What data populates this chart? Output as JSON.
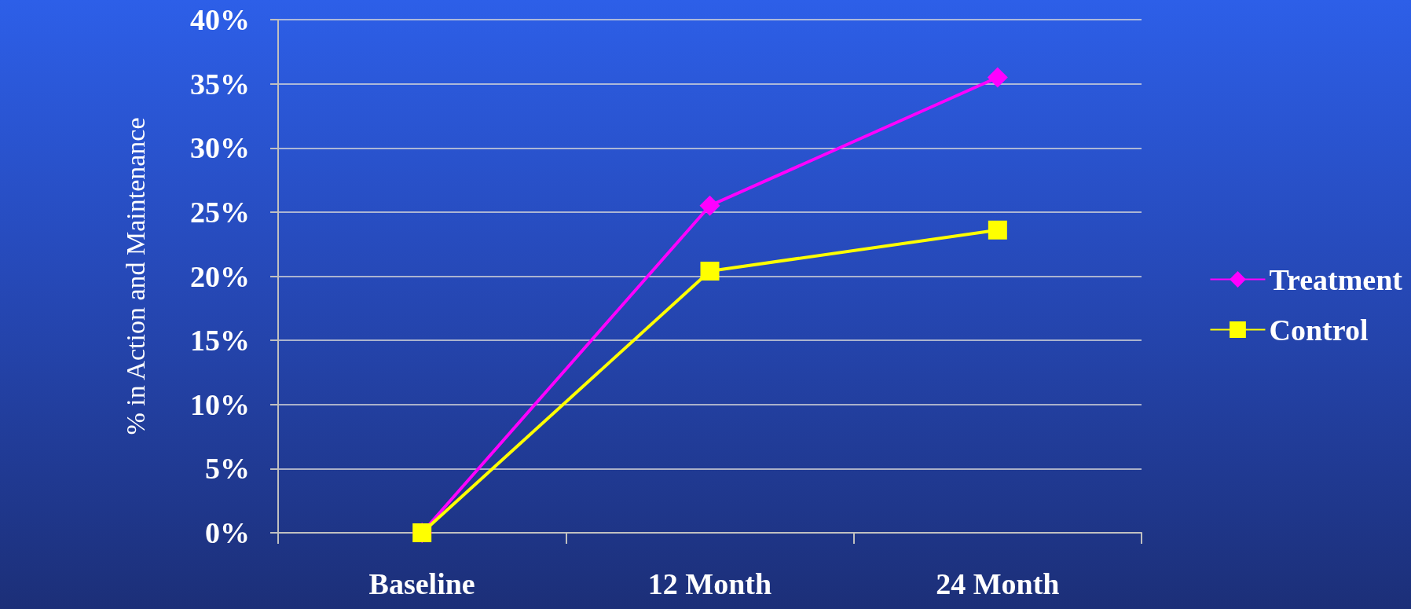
{
  "chart_data": {
    "type": "line",
    "ylabel": "% in Action and Maintenance",
    "categories": [
      "Baseline",
      "12 Month",
      "24 Month"
    ],
    "series": [
      {
        "name": "Treatment",
        "color": "#ff00ff",
        "marker": "diamond",
        "values": [
          0,
          25.5,
          35.5
        ]
      },
      {
        "name": "Control",
        "color": "#ffff00",
        "marker": "square",
        "values": [
          0,
          20.4,
          23.6
        ]
      }
    ],
    "ylim": [
      0,
      40
    ],
    "yticks": [
      {
        "value": 0,
        "label": "0%"
      },
      {
        "value": 5,
        "label": "5%"
      },
      {
        "value": 10,
        "label": "10%"
      },
      {
        "value": 15,
        "label": "15%"
      },
      {
        "value": 20,
        "label": "20%"
      },
      {
        "value": 25,
        "label": "25%"
      },
      {
        "value": 30,
        "label": "30%"
      },
      {
        "value": 35,
        "label": "35%"
      },
      {
        "value": 40,
        "label": "40%"
      }
    ],
    "grid": "y",
    "legend": "right",
    "line_style": "solid"
  }
}
